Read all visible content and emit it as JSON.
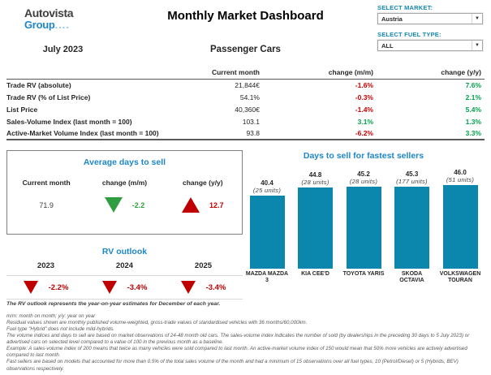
{
  "header": {
    "logo_line1": "Autovista",
    "logo_line2": "Group",
    "logo_dots": "....",
    "title": "Monthly Market Dashboard",
    "period": "July 2023",
    "subtitle": "Passenger Cars",
    "market_select": {
      "label": "SELECT MARKET:",
      "value": "Austria"
    },
    "fuel_select": {
      "label": "SELECT FUEL TYPE:",
      "value": "ALL"
    }
  },
  "colors": {
    "accent_blue": "#1e87c9",
    "select_label_teal": "#1587ad",
    "bar_teal": "#0b87ad",
    "negative_red": "#c00000",
    "positive_green": "#00a14b",
    "triangle_green": "#2f9e41"
  },
  "kpi_table": {
    "columns": [
      "Current month",
      "change (m/m)",
      "change (y/y)"
    ],
    "rows": [
      {
        "label": "Trade RV (absolute)",
        "current": "21,844€",
        "mm": "-1.6%",
        "mm_color": "#c00000",
        "yy": "7.6%",
        "yy_color": "#00a14b"
      },
      {
        "label": "Trade RV (% of List Price)",
        "current": "54.1%",
        "mm": "-0.3%",
        "mm_color": "#c00000",
        "yy": "2.1%",
        "yy_color": "#00a14b"
      },
      {
        "label": "List Price",
        "current": "40,360€",
        "mm": "-1.4%",
        "mm_color": "#c00000",
        "yy": "5.4%",
        "yy_color": "#00a14b"
      },
      {
        "label": "Sales-Volume Index (last month = 100)",
        "current": "103.1",
        "mm": "3.1%",
        "mm_color": "#00a14b",
        "yy": "1.3%",
        "yy_color": "#00a14b"
      },
      {
        "label": "Active-Market Volume Index (last month = 100)",
        "current": "93.8",
        "mm": "-6.2%",
        "mm_color": "#c00000",
        "yy": "3.3%",
        "yy_color": "#00a14b"
      }
    ]
  },
  "avg_days": {
    "title": "Average days to sell",
    "columns": [
      "Current month",
      "change (m/m)",
      "change (y/y)"
    ],
    "current": "71.9",
    "mm_value": "-2.2",
    "mm_direction": "down",
    "mm_color": "#2f9e41",
    "yy_value": "12.7",
    "yy_direction": "up",
    "yy_color": "#c00000"
  },
  "rv_outlook": {
    "title": "RV outlook",
    "years": [
      "2023",
      "2024",
      "2025"
    ],
    "values": [
      "-2.2%",
      "-3.4%",
      "-3.4%"
    ],
    "direction": "down",
    "value_color": "#c00000"
  },
  "chart_data": {
    "type": "bar",
    "title": "Days to sell for fastest sellers",
    "categories": [
      "MAZDA MAZDA 3",
      "KIA CEE'D",
      "TOYOTA YARIS",
      "SKODA OCTAVIA",
      "VOLKSWAGEN TOURAN"
    ],
    "values": [
      40.4,
      44.8,
      45.2,
      45.3,
      46.0
    ],
    "value_labels": [
      "40.4",
      "44.8",
      "45.2",
      "45.3",
      "46.0"
    ],
    "unit_labels": [
      "(25 units)",
      "(28 units)",
      "(28 units)",
      "(177 units)",
      "(51 units)"
    ],
    "xlabel": "",
    "ylabel": "days to sell",
    "ylim": [
      0,
      46
    ],
    "grid": false,
    "legend": false,
    "bar_color": "#0b87ad"
  },
  "footnotes": {
    "highlight": "The RV outlook represents the year-on-year estimates for December of each year.",
    "lines": [
      "m/m: month on month; y/y: year on year",
      "Residual values shown are monthly published volume-weighted, gross-trade values of standardised vehicles with 36 months/60,000km.",
      "Fuel type \"Hybrid\" does not include mild-hybrids.",
      "The volume indices and days to sell are based on market observations of 24-48 month old cars. The sales-volume index indicates the number of sold (by dealerships in the preceding 30 days to 5 July 2023) or advertised cars on selected level compared to a value of 100 in the previous month as a baseline.",
      "Example: A sales-volume index of 200 means that twice as many vehicles were sold compared to last month. An active-market volume index of 150 would mean that 50% more vehicles are actively advertised compared to last month.",
      "Fast sellers are based on models that accounted for more than 0.5% of the total sales volume of the month and had a minimum of 15 observations over all fuel types, 10 (Petrol/Diesel) or 5 (Hybrids, BEV) observations respectively."
    ]
  }
}
